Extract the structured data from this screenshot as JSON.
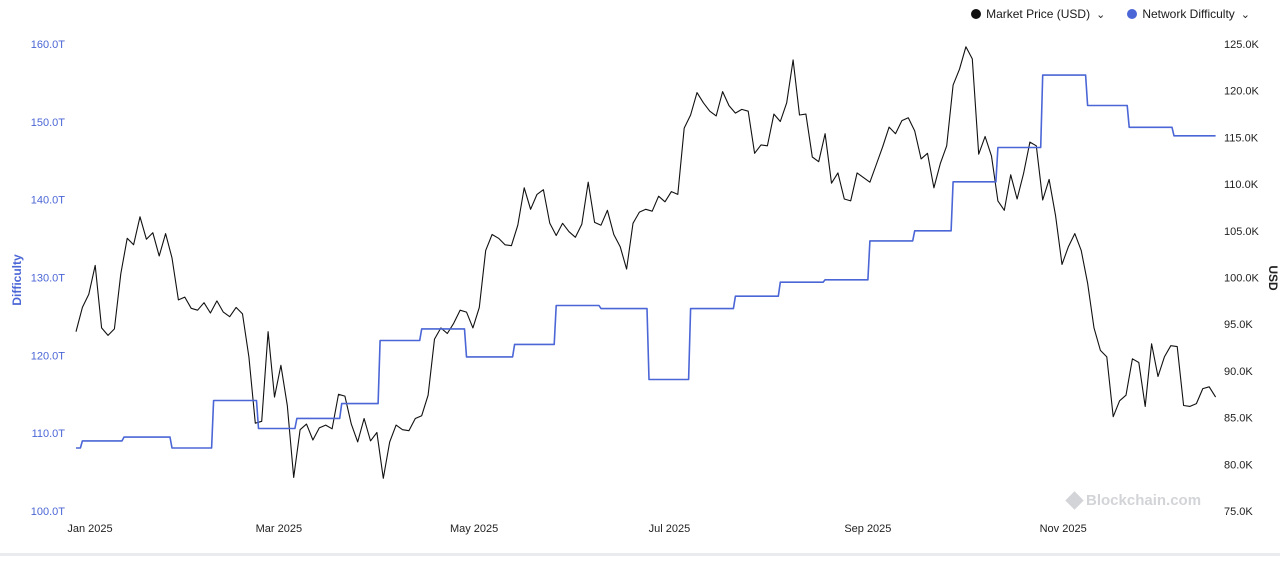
{
  "legend": {
    "price_label": "Market Price (USD)",
    "difficulty_label": "Network Difficulty",
    "chevron": "chevron-down-icon"
  },
  "watermark": {
    "text": "Blockchain.com"
  },
  "colors": {
    "price": "#111111",
    "difficulty": "#4b66d6",
    "left_axis_text": "#4b66d6",
    "right_axis_text": "#222222"
  },
  "chart_data": {
    "type": "line",
    "title": "",
    "xlabel": "",
    "ylabel_left": "Difficulty",
    "ylabel_right": "USD",
    "x_ticks": [
      "Jan 2025",
      "Mar 2025",
      "May 2025",
      "Jul 2025",
      "Sep 2025",
      "Nov 2025"
    ],
    "y_left_ticks": [
      "100.0T",
      "110.0T",
      "120.0T",
      "130.0T",
      "140.0T",
      "150.0T",
      "160.0T"
    ],
    "y_right_ticks": [
      "75.0K",
      "80.0K",
      "85.0K",
      "90.0K",
      "95.0K",
      "100.0K",
      "105.0K",
      "110.0K",
      "115.0K",
      "120.0K",
      "125.0K"
    ],
    "y_left_range": [
      100,
      160
    ],
    "y_right_range": [
      75,
      125
    ],
    "x_range": [
      "2025-01-01",
      "2025-12-15"
    ],
    "grid": false,
    "legend_position": "top-right",
    "series": [
      {
        "name": "Market Price (USD)",
        "axis": "right",
        "unit": "K USD",
        "points": [
          [
            "2025-01-01",
            94.2
          ],
          [
            "2025-01-03",
            96.8
          ],
          [
            "2025-01-05",
            98.2
          ],
          [
            "2025-01-07",
            101.3
          ],
          [
            "2025-01-09",
            94.6
          ],
          [
            "2025-01-11",
            93.8
          ],
          [
            "2025-01-13",
            94.5
          ],
          [
            "2025-01-15",
            100.4
          ],
          [
            "2025-01-17",
            104.2
          ],
          [
            "2025-01-19",
            103.5
          ],
          [
            "2025-01-21",
            106.5
          ],
          [
            "2025-01-23",
            104.1
          ],
          [
            "2025-01-25",
            104.8
          ],
          [
            "2025-01-27",
            102.3
          ],
          [
            "2025-01-29",
            104.7
          ],
          [
            "2025-01-31",
            102.1
          ],
          [
            "2025-02-02",
            97.6
          ],
          [
            "2025-02-04",
            97.9
          ],
          [
            "2025-02-06",
            96.7
          ],
          [
            "2025-02-08",
            96.5
          ],
          [
            "2025-02-10",
            97.3
          ],
          [
            "2025-02-12",
            96.2
          ],
          [
            "2025-02-14",
            97.5
          ],
          [
            "2025-02-16",
            96.3
          ],
          [
            "2025-02-18",
            95.8
          ],
          [
            "2025-02-20",
            96.8
          ],
          [
            "2025-02-22",
            96.1
          ],
          [
            "2025-02-24",
            91.5
          ],
          [
            "2025-02-26",
            84.4
          ],
          [
            "2025-02-28",
            84.6
          ],
          [
            "2025-03-02",
            94.2
          ],
          [
            "2025-03-04",
            87.2
          ],
          [
            "2025-03-06",
            90.6
          ],
          [
            "2025-03-08",
            86.3
          ],
          [
            "2025-03-10",
            78.6
          ],
          [
            "2025-03-12",
            83.7
          ],
          [
            "2025-03-14",
            84.3
          ],
          [
            "2025-03-16",
            82.6
          ],
          [
            "2025-03-18",
            83.9
          ],
          [
            "2025-03-20",
            84.2
          ],
          [
            "2025-03-22",
            83.8
          ],
          [
            "2025-03-24",
            87.5
          ],
          [
            "2025-03-26",
            87.3
          ],
          [
            "2025-03-28",
            84.3
          ],
          [
            "2025-03-30",
            82.4
          ],
          [
            "2025-04-01",
            84.9
          ],
          [
            "2025-04-03",
            82.5
          ],
          [
            "2025-04-05",
            83.4
          ],
          [
            "2025-04-07",
            78.5
          ],
          [
            "2025-04-09",
            82.4
          ],
          [
            "2025-04-11",
            84.2
          ],
          [
            "2025-04-13",
            83.7
          ],
          [
            "2025-04-15",
            83.6
          ],
          [
            "2025-04-17",
            84.9
          ],
          [
            "2025-04-19",
            85.2
          ],
          [
            "2025-04-21",
            87.4
          ],
          [
            "2025-04-23",
            93.4
          ],
          [
            "2025-04-25",
            94.6
          ],
          [
            "2025-04-27",
            94.0
          ],
          [
            "2025-04-29",
            95.1
          ],
          [
            "2025-05-01",
            96.5
          ],
          [
            "2025-05-03",
            96.3
          ],
          [
            "2025-05-05",
            94.6
          ],
          [
            "2025-05-07",
            96.8
          ],
          [
            "2025-05-09",
            102.9
          ],
          [
            "2025-05-11",
            104.6
          ],
          [
            "2025-05-13",
            104.2
          ],
          [
            "2025-05-15",
            103.5
          ],
          [
            "2025-05-17",
            103.4
          ],
          [
            "2025-05-19",
            105.6
          ],
          [
            "2025-05-21",
            109.6
          ],
          [
            "2025-05-23",
            107.3
          ],
          [
            "2025-05-25",
            108.9
          ],
          [
            "2025-05-27",
            109.4
          ],
          [
            "2025-05-29",
            105.8
          ],
          [
            "2025-05-31",
            104.5
          ],
          [
            "2025-06-02",
            105.8
          ],
          [
            "2025-06-04",
            104.9
          ],
          [
            "2025-06-06",
            104.3
          ],
          [
            "2025-06-08",
            105.7
          ],
          [
            "2025-06-10",
            110.2
          ],
          [
            "2025-06-12",
            105.9
          ],
          [
            "2025-06-14",
            105.6
          ],
          [
            "2025-06-16",
            107.2
          ],
          [
            "2025-06-18",
            104.6
          ],
          [
            "2025-06-20",
            103.3
          ],
          [
            "2025-06-22",
            100.9
          ],
          [
            "2025-06-24",
            105.8
          ],
          [
            "2025-06-26",
            107.0
          ],
          [
            "2025-06-28",
            107.3
          ],
          [
            "2025-06-30",
            107.1
          ],
          [
            "2025-07-02",
            108.7
          ],
          [
            "2025-07-04",
            108.1
          ],
          [
            "2025-07-06",
            109.2
          ],
          [
            "2025-07-08",
            108.9
          ],
          [
            "2025-07-10",
            116.0
          ],
          [
            "2025-07-12",
            117.4
          ],
          [
            "2025-07-14",
            119.8
          ],
          [
            "2025-07-16",
            118.7
          ],
          [
            "2025-07-18",
            117.8
          ],
          [
            "2025-07-20",
            117.3
          ],
          [
            "2025-07-22",
            119.9
          ],
          [
            "2025-07-24",
            118.4
          ],
          [
            "2025-07-26",
            117.6
          ],
          [
            "2025-07-28",
            118.0
          ],
          [
            "2025-07-30",
            117.8
          ],
          [
            "2025-08-01",
            113.3
          ],
          [
            "2025-08-03",
            114.2
          ],
          [
            "2025-08-05",
            114.1
          ],
          [
            "2025-08-07",
            117.5
          ],
          [
            "2025-08-09",
            116.7
          ],
          [
            "2025-08-11",
            118.7
          ],
          [
            "2025-08-13",
            123.3
          ],
          [
            "2025-08-15",
            117.4
          ],
          [
            "2025-08-17",
            117.5
          ],
          [
            "2025-08-19",
            112.9
          ],
          [
            "2025-08-21",
            112.4
          ],
          [
            "2025-08-23",
            115.4
          ],
          [
            "2025-08-25",
            110.1
          ],
          [
            "2025-08-27",
            111.2
          ],
          [
            "2025-08-29",
            108.4
          ],
          [
            "2025-08-31",
            108.2
          ],
          [
            "2025-09-02",
            111.2
          ],
          [
            "2025-09-04",
            110.7
          ],
          [
            "2025-09-06",
            110.2
          ],
          [
            "2025-09-08",
            112.1
          ],
          [
            "2025-09-10",
            114.0
          ],
          [
            "2025-09-12",
            116.1
          ],
          [
            "2025-09-14",
            115.4
          ],
          [
            "2025-09-16",
            116.8
          ],
          [
            "2025-09-18",
            117.1
          ],
          [
            "2025-09-20",
            115.7
          ],
          [
            "2025-09-22",
            112.7
          ],
          [
            "2025-09-24",
            113.3
          ],
          [
            "2025-09-26",
            109.6
          ],
          [
            "2025-09-28",
            112.2
          ],
          [
            "2025-09-30",
            114.1
          ],
          [
            "2025-10-02",
            120.6
          ],
          [
            "2025-10-04",
            122.3
          ],
          [
            "2025-10-06",
            124.7
          ],
          [
            "2025-10-08",
            123.4
          ],
          [
            "2025-10-10",
            113.2
          ],
          [
            "2025-10-12",
            115.1
          ],
          [
            "2025-10-14",
            113.0
          ],
          [
            "2025-10-16",
            108.2
          ],
          [
            "2025-10-18",
            107.2
          ],
          [
            "2025-10-20",
            111.0
          ],
          [
            "2025-10-22",
            108.4
          ],
          [
            "2025-10-24",
            111.1
          ],
          [
            "2025-10-26",
            114.5
          ],
          [
            "2025-10-28",
            114.1
          ],
          [
            "2025-10-30",
            108.3
          ],
          [
            "2025-11-01",
            110.5
          ],
          [
            "2025-11-03",
            106.6
          ],
          [
            "2025-11-05",
            101.4
          ],
          [
            "2025-11-07",
            103.3
          ],
          [
            "2025-11-09",
            104.7
          ],
          [
            "2025-11-11",
            102.9
          ],
          [
            "2025-11-13",
            99.4
          ],
          [
            "2025-11-15",
            94.6
          ],
          [
            "2025-11-17",
            92.2
          ],
          [
            "2025-11-19",
            91.5
          ],
          [
            "2025-11-21",
            85.1
          ],
          [
            "2025-11-23",
            86.8
          ],
          [
            "2025-11-25",
            87.4
          ],
          [
            "2025-11-27",
            91.3
          ],
          [
            "2025-11-29",
            90.9
          ],
          [
            "2025-12-01",
            86.2
          ],
          [
            "2025-12-03",
            92.9
          ],
          [
            "2025-12-05",
            89.4
          ],
          [
            "2025-12-07",
            91.5
          ],
          [
            "2025-12-09",
            92.7
          ],
          [
            "2025-12-11",
            92.6
          ],
          [
            "2025-12-13",
            86.3
          ],
          [
            "2025-12-15",
            86.2
          ],
          [
            "2025-12-17",
            86.5
          ],
          [
            "2025-12-19",
            88.1
          ],
          [
            "2025-12-21",
            88.3
          ],
          [
            "2025-12-23",
            87.2
          ]
        ]
      },
      {
        "name": "Network Difficulty",
        "axis": "left",
        "unit": "T",
        "points": [
          [
            "2025-01-01",
            108.1
          ],
          [
            "2025-01-03",
            109.0
          ],
          [
            "2025-01-16",
            109.5
          ],
          [
            "2025-01-31",
            108.1
          ],
          [
            "2025-02-13",
            114.2
          ],
          [
            "2025-02-27",
            110.6
          ],
          [
            "2025-03-11",
            111.9
          ],
          [
            "2025-03-25",
            113.8
          ],
          [
            "2025-04-06",
            121.9
          ],
          [
            "2025-04-19",
            123.4
          ],
          [
            "2025-05-03",
            119.8
          ],
          [
            "2025-05-18",
            121.4
          ],
          [
            "2025-05-31",
            126.4
          ],
          [
            "2025-06-14",
            126.0
          ],
          [
            "2025-06-29",
            116.9
          ],
          [
            "2025-07-12",
            126.0
          ],
          [
            "2025-07-26",
            127.6
          ],
          [
            "2025-08-09",
            129.4
          ],
          [
            "2025-08-23",
            129.7
          ],
          [
            "2025-09-06",
            134.7
          ],
          [
            "2025-09-20",
            136.0
          ],
          [
            "2025-10-02",
            142.3
          ],
          [
            "2025-10-16",
            146.7
          ],
          [
            "2025-10-30",
            156.0
          ],
          [
            "2025-11-13",
            152.1
          ],
          [
            "2025-11-26",
            149.3
          ],
          [
            "2025-12-10",
            148.2
          ],
          [
            "2025-12-23",
            148.2
          ]
        ]
      }
    ]
  }
}
